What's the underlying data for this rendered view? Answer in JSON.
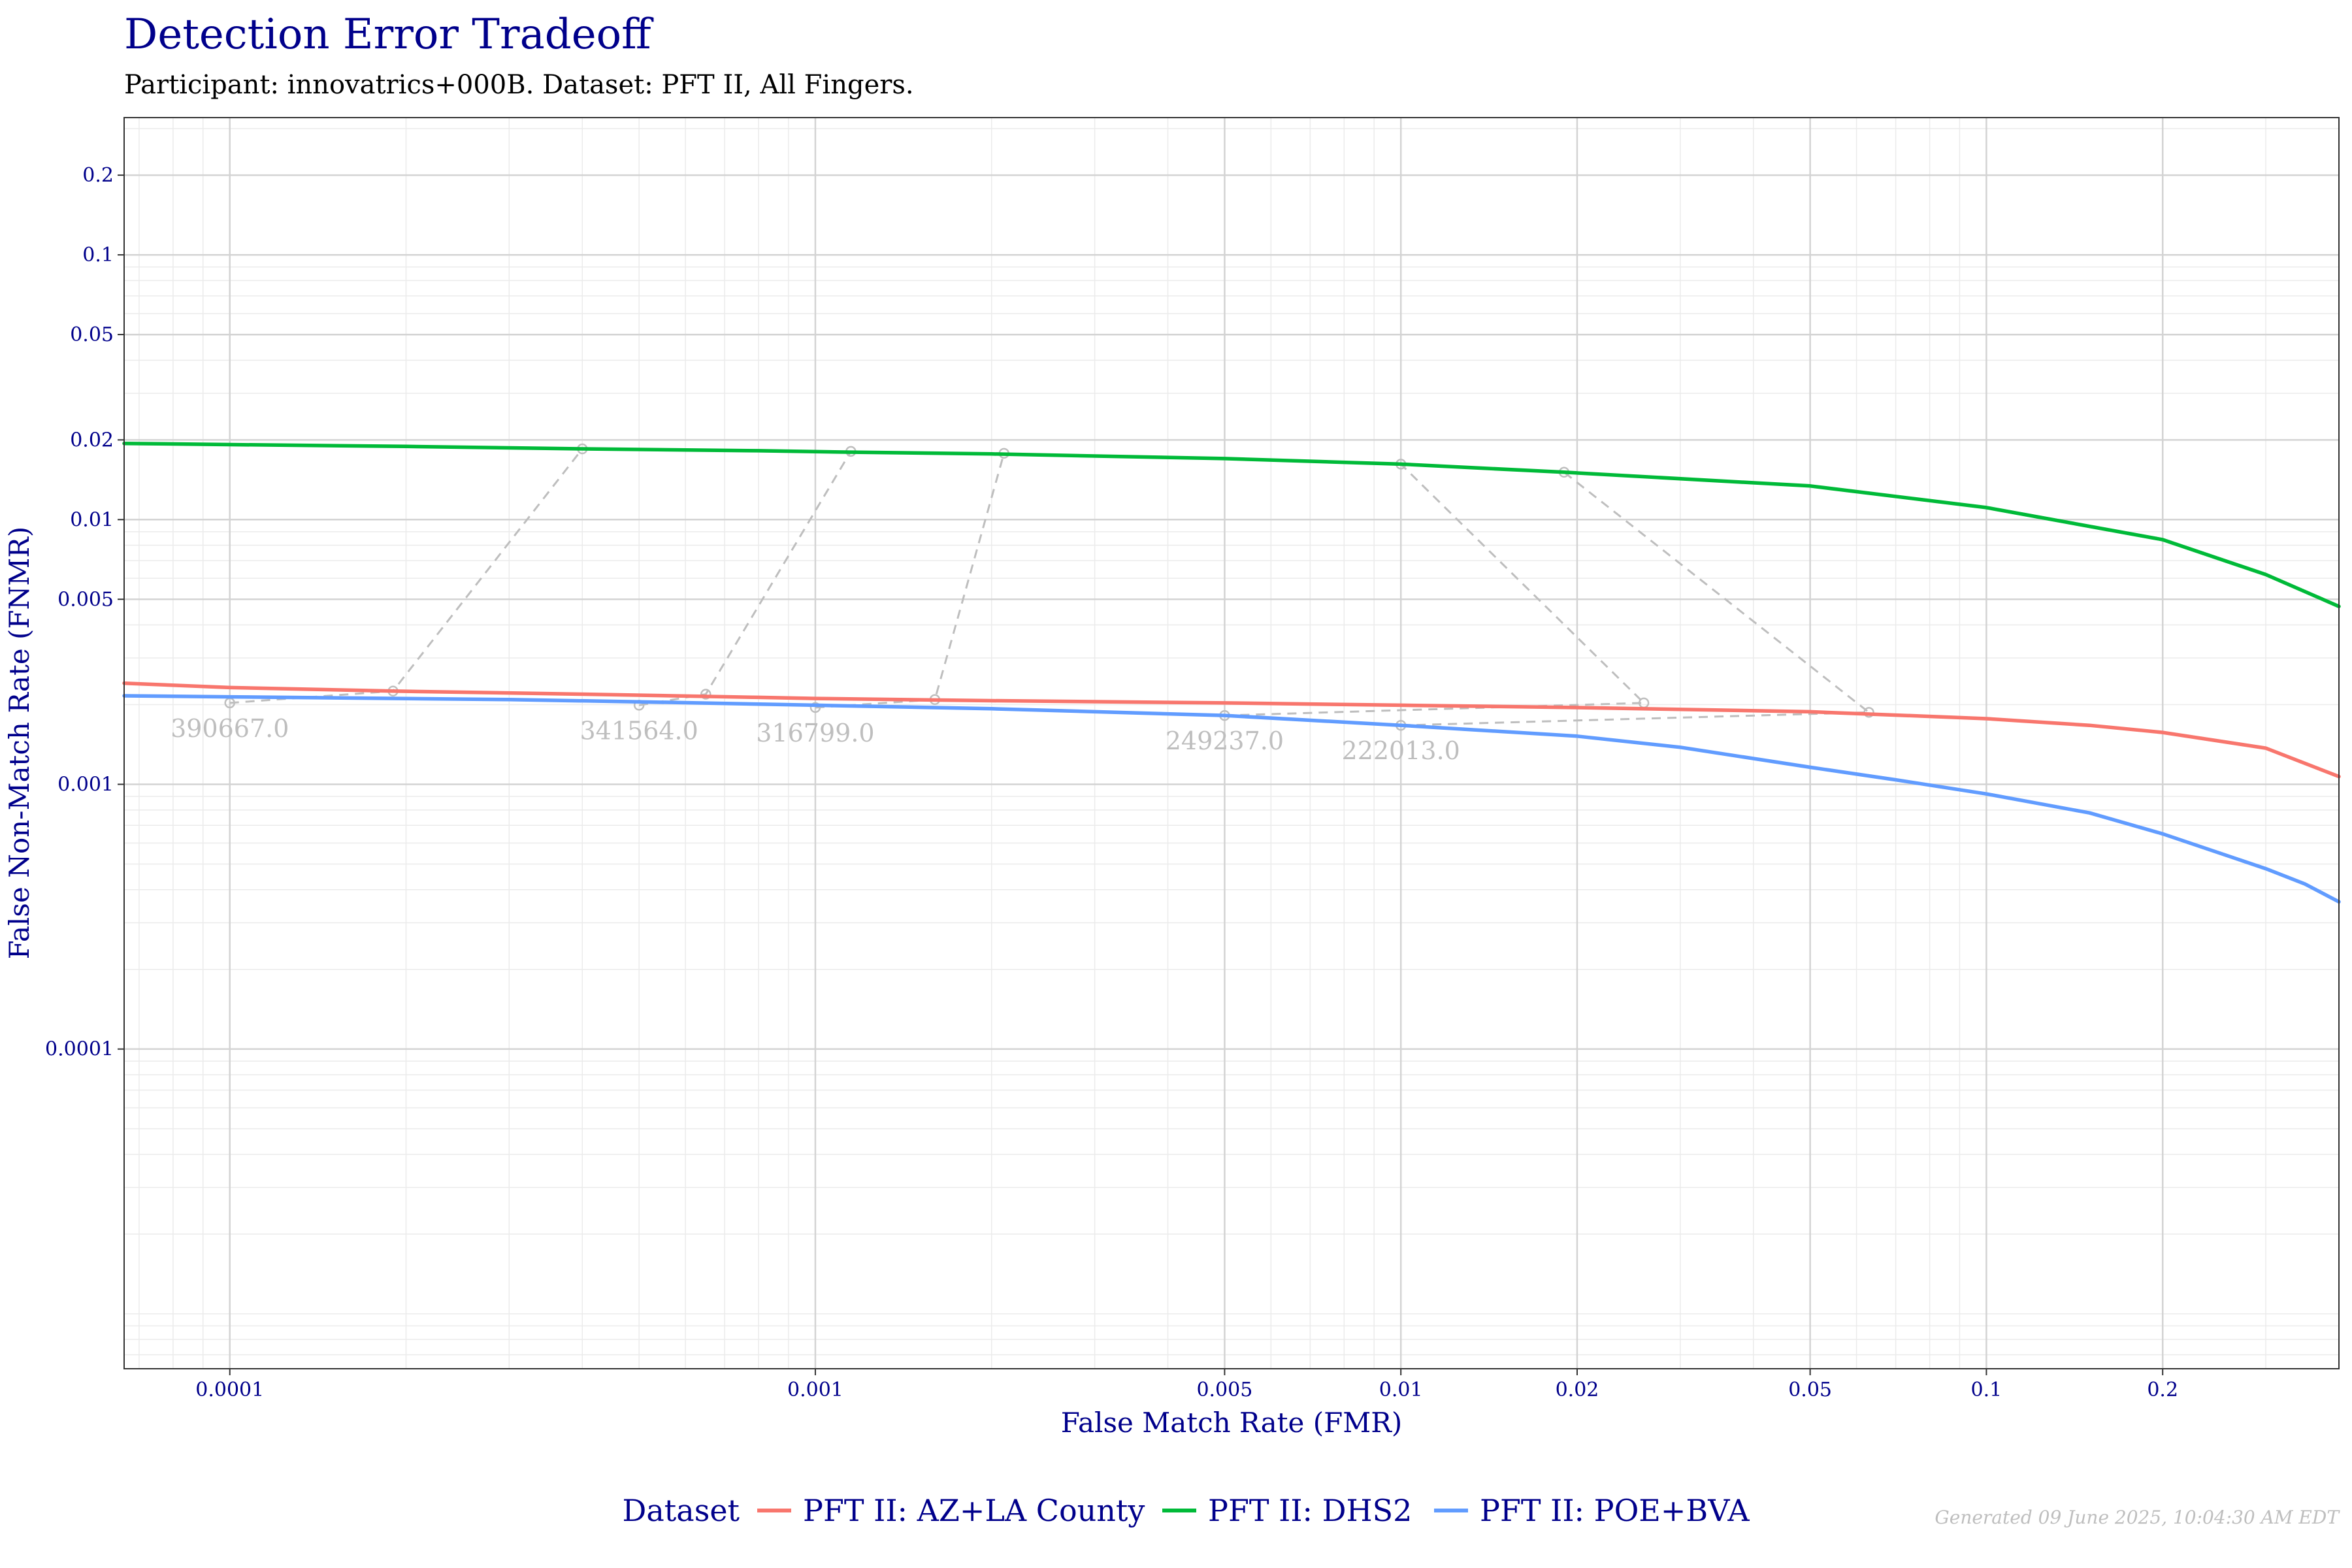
{
  "chart_data": {
    "type": "line",
    "title": "Detection Error Tradeoff",
    "subtitle": "Participant: innovatrics+000B. Dataset: PFT II, All Fingers.",
    "xlabel": "False Match Rate (FMR)",
    "ylabel": "False Non-Match Rate (FNMR)",
    "x_scale": "log",
    "y_scale": "log",
    "xlim": [
      6.6e-05,
      0.4
    ],
    "ylim": [
      6.2e-06,
      0.33
    ],
    "x_ticks": [
      {
        "value": 0.0001,
        "label": "0.0001"
      },
      {
        "value": 0.001,
        "label": "0.001"
      },
      {
        "value": 0.005,
        "label": "0.005"
      },
      {
        "value": 0.01,
        "label": "0.01"
      },
      {
        "value": 0.02,
        "label": "0.02"
      },
      {
        "value": 0.05,
        "label": "0.05"
      },
      {
        "value": 0.1,
        "label": "0.1"
      },
      {
        "value": 0.2,
        "label": "0.2"
      }
    ],
    "y_ticks": [
      {
        "value": 0.0001,
        "label": "0.0001"
      },
      {
        "value": 0.001,
        "label": "0.001"
      },
      {
        "value": 0.005,
        "label": "0.005"
      },
      {
        "value": 0.01,
        "label": "0.01"
      },
      {
        "value": 0.02,
        "label": "0.02"
      },
      {
        "value": 0.05,
        "label": "0.05"
      },
      {
        "value": 0.1,
        "label": "0.1"
      },
      {
        "value": 0.2,
        "label": "0.2"
      }
    ],
    "grid": true,
    "legend": {
      "title": "Dataset",
      "position": "bottom"
    },
    "series": [
      {
        "name": "PFT II: AZ+LA County",
        "color": "#F8766D",
        "x": [
          6.6e-05,
          0.0001,
          0.00019,
          0.0004,
          0.0008,
          0.001,
          0.002,
          0.005,
          0.01,
          0.02,
          0.05,
          0.1,
          0.15,
          0.2,
          0.3,
          0.4
        ],
        "y": [
          0.00241,
          0.00232,
          0.00225,
          0.00219,
          0.00213,
          0.00211,
          0.00207,
          0.00203,
          0.00199,
          0.00195,
          0.00188,
          0.00177,
          0.00167,
          0.00157,
          0.00137,
          0.00107
        ]
      },
      {
        "name": "PFT II: DHS2",
        "color": "#00BA38",
        "x": [
          6.6e-05,
          0.0001,
          0.0002,
          0.0004,
          0.0008,
          0.0011,
          0.002,
          0.005,
          0.01,
          0.019,
          0.05,
          0.1,
          0.2,
          0.3,
          0.4
        ],
        "y": [
          0.0194,
          0.0192,
          0.0189,
          0.0185,
          0.0182,
          0.018,
          0.0177,
          0.017,
          0.0162,
          0.0151,
          0.0134,
          0.0111,
          0.0084,
          0.0062,
          0.0047
        ]
      },
      {
        "name": "PFT II: POE+BVA",
        "color": "#619CFF",
        "x": [
          6.6e-05,
          0.0001,
          0.0003,
          0.0005,
          0.001,
          0.002,
          0.005,
          0.01,
          0.02,
          0.03,
          0.05,
          0.07,
          0.1,
          0.15,
          0.2,
          0.3,
          0.35,
          0.4
        ],
        "y": [
          0.00216,
          0.00214,
          0.00209,
          0.00205,
          0.00199,
          0.00193,
          0.00182,
          0.00167,
          0.00152,
          0.00138,
          0.00116,
          0.00104,
          0.00092,
          0.00078,
          0.00065,
          0.00048,
          0.00042,
          0.00036
        ]
      }
    ],
    "annotations": [
      {
        "label": "390667.0",
        "points": [
          [
            0.0001,
            0.00203
          ],
          [
            0.00019,
            0.00225
          ],
          [
            0.0004,
            0.0185
          ]
        ]
      },
      {
        "label": "341564.0",
        "points": [
          [
            0.0005,
            0.00199
          ],
          [
            0.00065,
            0.00219
          ],
          [
            0.00115,
            0.0181
          ]
        ]
      },
      {
        "label": "316799.0",
        "points": [
          [
            0.001,
            0.00195
          ],
          [
            0.0016,
            0.00209
          ],
          [
            0.0021,
            0.0178
          ]
        ]
      },
      {
        "label": "249237.0",
        "points": [
          [
            0.005,
            0.00182
          ],
          [
            0.026,
            0.00203
          ],
          [
            0.01,
            0.0162
          ]
        ]
      },
      {
        "label": "222013.0",
        "points": [
          [
            0.01,
            0.00167
          ],
          [
            0.063,
            0.00187
          ],
          [
            0.019,
            0.0151
          ]
        ]
      }
    ]
  },
  "footer": "Generated 09 June 2025, 10:04:30 AM EDT"
}
